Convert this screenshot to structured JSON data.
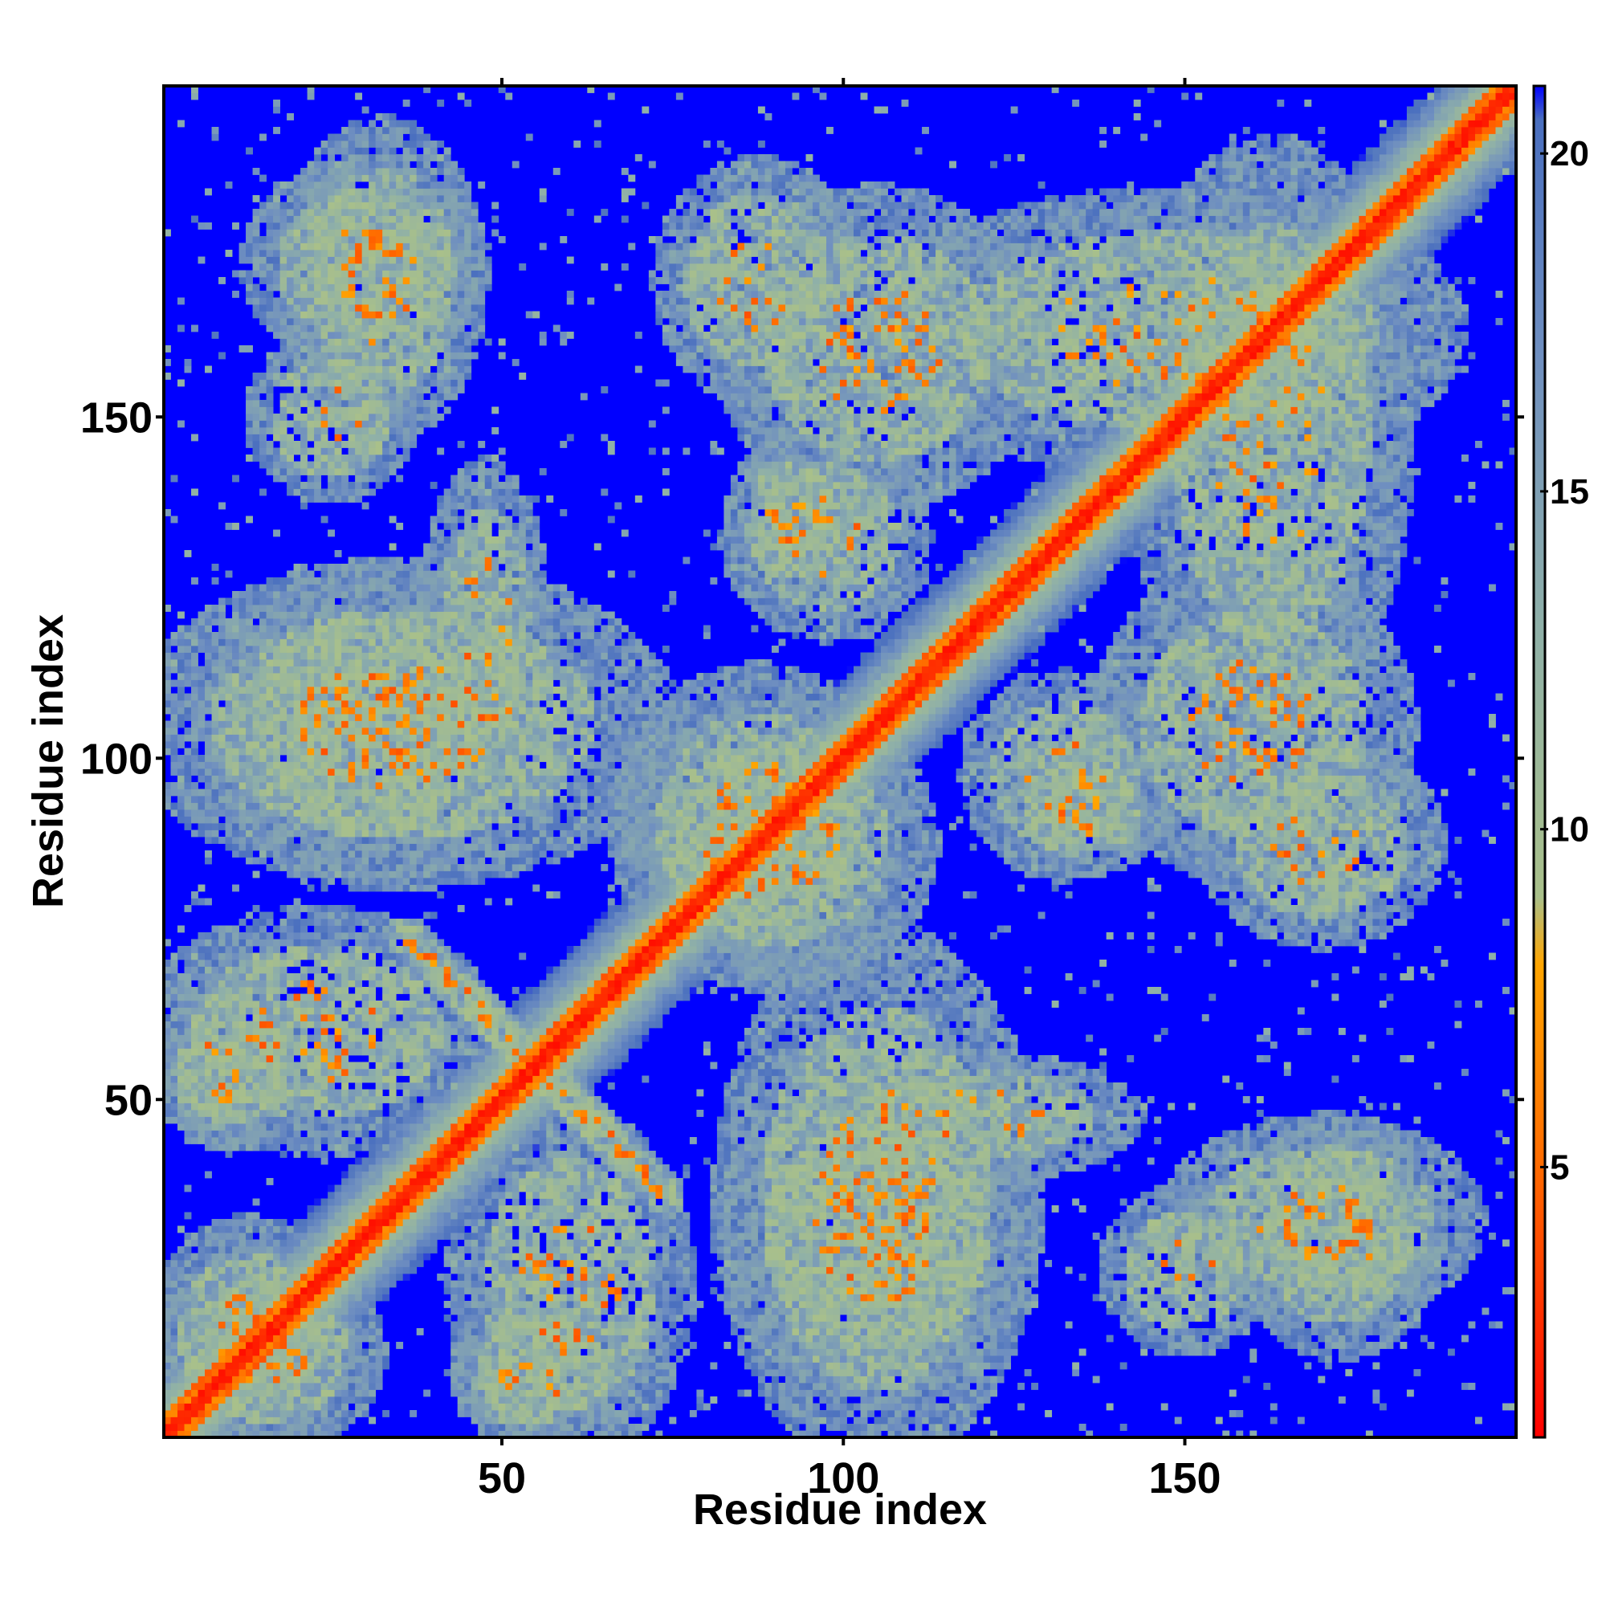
{
  "chart_data": {
    "type": "heatmap",
    "title": "",
    "xlabel": "Residue index",
    "ylabel": "Residue index",
    "n_residues": 198,
    "xlim": [
      1,
      198
    ],
    "ylim": [
      1,
      198
    ],
    "xticks": [
      50,
      100,
      150
    ],
    "yticks": [
      50,
      100,
      150
    ],
    "colorbar": {
      "range": [
        1,
        21
      ],
      "ticks": [
        5,
        10,
        15,
        20
      ],
      "gradient": [
        {
          "value": 1,
          "color": "#ff0000"
        },
        {
          "value": 5,
          "color": "#ff6a00"
        },
        {
          "value": 8,
          "color": "#ffa500"
        },
        {
          "value": 9,
          "color": "#a9c08a"
        },
        {
          "value": 13,
          "color": "#8fb0a8"
        },
        {
          "value": 17,
          "color": "#6f8fc0"
        },
        {
          "value": 20.5,
          "color": "#4a6fbf"
        },
        {
          "value": 21,
          "color": "#0000ff"
        }
      ]
    },
    "background_color": "#0000ff",
    "contact_regions": [
      {
        "x": [
          1,
          198
        ],
        "y": [
          1,
          198
        ],
        "kind": "diagonal",
        "band_width": 7
      },
      {
        "x": [
          35,
          70
        ],
        "y": [
          40,
          75
        ],
        "kind": "anti-diagonal",
        "band_width": 3
      },
      {
        "x": [
          1,
          70
        ],
        "y": [
          85,
          125
        ],
        "kind": "off-diagonal",
        "band_width": 9
      },
      {
        "x": [
          45,
          75
        ],
        "y": [
          1,
          45
        ],
        "kind": "off-diagonal",
        "band_width": 8
      },
      {
        "x": [
          15,
          45
        ],
        "y": [
          160,
          185
        ],
        "kind": "blob",
        "band_width": 9
      },
      {
        "x": [
          15,
          35
        ],
        "y": [
          140,
          160
        ],
        "kind": "blob",
        "band_width": 6
      },
      {
        "x": [
          85,
          125
        ],
        "y": [
          140,
          180
        ],
        "kind": "blob",
        "band_width": 9
      },
      {
        "x": [
          85,
          110
        ],
        "y": [
          120,
          145
        ],
        "kind": "blob",
        "band_width": 6
      },
      {
        "x": [
          145,
          180
        ],
        "y": [
          110,
          185
        ],
        "kind": "blob",
        "band_width": 9
      },
      {
        "x": [
          125,
          145
        ],
        "y": [
          85,
          100
        ],
        "kind": "blob",
        "band_width": 6
      },
      {
        "x": [
          85,
          125
        ],
        "y": [
          10,
          50
        ],
        "kind": "off-diagonal",
        "band_width": 9
      },
      {
        "x": [
          150,
          190
        ],
        "y": [
          20,
          45
        ],
        "kind": "blob",
        "band_width": 8
      },
      {
        "x": [
          1,
          20
        ],
        "y": [
          45,
          65
        ],
        "kind": "blob",
        "band_width": 6
      },
      {
        "x": [
          1,
          25
        ],
        "y": [
          1,
          30
        ],
        "kind": "blob",
        "band_width": 6
      },
      {
        "x": [
          70,
          105
        ],
        "y": [
          70,
          110
        ],
        "kind": "blob",
        "band_width": 9
      },
      {
        "x": [
          155,
          185
        ],
        "y": [
          75,
          100
        ],
        "kind": "blob",
        "band_width": 6
      },
      {
        "x": [
          100,
          140
        ],
        "y": [
          40,
          55
        ],
        "kind": "blob",
        "band_width": 6
      },
      {
        "x": [
          45,
          60
        ],
        "y": [
          1,
          15
        ],
        "kind": "blob",
        "band_width": 5
      }
    ]
  }
}
